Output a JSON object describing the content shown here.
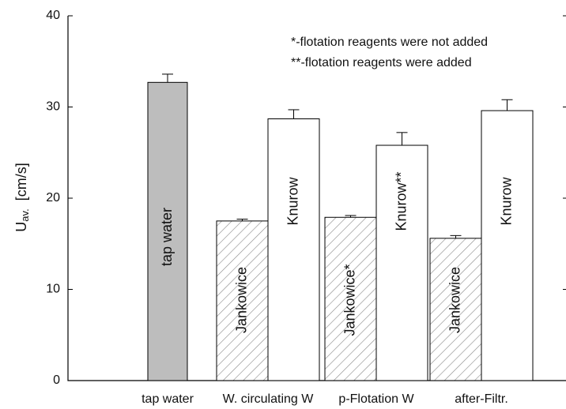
{
  "chart_data": {
    "type": "bar",
    "y_label": "U",
    "y_label_sub": "av.",
    "y_label_unit": "[cm/s]",
    "annotations": [
      "*-flotation reagents were not added",
      "**-flotation reagents were added"
    ],
    "ylim": [
      0,
      40
    ],
    "yticks": [
      0,
      10,
      20,
      30,
      40
    ],
    "groups": [
      {
        "category": "tap water",
        "bars": [
          {
            "label": "tap water",
            "value": 32.7,
            "error": 0.9,
            "fill": "#bdbdbd",
            "hatch": false
          }
        ]
      },
      {
        "category": "W. circulating W",
        "bars": [
          {
            "label": "Jankowice",
            "value": 17.5,
            "error": 0.2,
            "fill": "#ffffff",
            "hatch": true
          },
          {
            "label": "Knurow",
            "value": 28.7,
            "error": 1.0,
            "fill": "#ffffff",
            "hatch": false
          }
        ]
      },
      {
        "category": "p-Flotation W",
        "bars": [
          {
            "label": "Jankowice*",
            "value": 17.9,
            "error": 0.2,
            "fill": "#ffffff",
            "hatch": true
          },
          {
            "label": "Knurow**",
            "value": 25.8,
            "error": 1.4,
            "fill": "#ffffff",
            "hatch": false
          }
        ]
      },
      {
        "category": "after-Filtr.",
        "bars": [
          {
            "label": "Jankowice",
            "value": 15.6,
            "error": 0.3,
            "fill": "#ffffff",
            "hatch": true
          },
          {
            "label": "Knurow",
            "value": 29.6,
            "error": 1.2,
            "fill": "#ffffff",
            "hatch": false
          }
        ]
      }
    ]
  }
}
